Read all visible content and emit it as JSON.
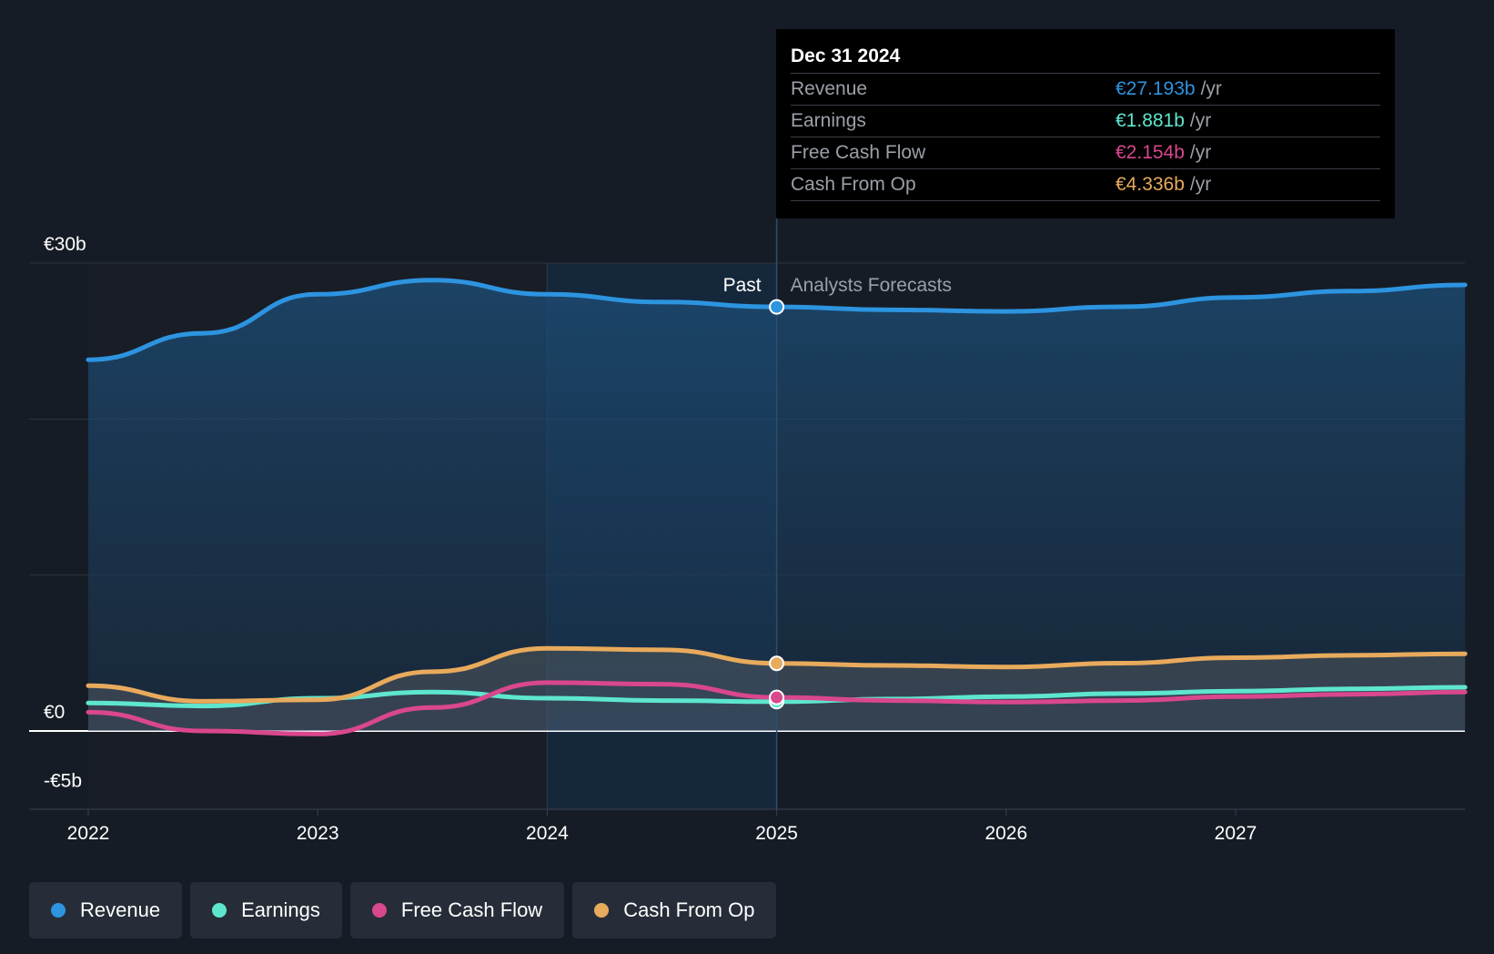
{
  "chart_data": {
    "type": "area",
    "y_labels": [
      "€30b",
      "€0",
      "-€5b"
    ],
    "ylim": [
      -5,
      30
    ],
    "x_ticks": [
      "2022",
      "2023",
      "2024",
      "2025",
      "2026",
      "2027"
    ],
    "past_label": "Past",
    "forecast_label": "Analysts Forecasts",
    "divider_x": 2025.0,
    "series": [
      {
        "name": "Revenue",
        "color": "#2d94e0",
        "points": [
          [
            2022.0,
            23.8
          ],
          [
            2022.5,
            25.5
          ],
          [
            2023.0,
            28.0
          ],
          [
            2023.5,
            28.9
          ],
          [
            2024.0,
            28.0
          ],
          [
            2024.5,
            27.5
          ],
          [
            2025.0,
            27.193
          ],
          [
            2025.5,
            27.0
          ],
          [
            2026.0,
            26.9
          ],
          [
            2026.5,
            27.2
          ],
          [
            2027.0,
            27.8
          ],
          [
            2027.5,
            28.2
          ],
          [
            2028.0,
            28.6
          ]
        ]
      },
      {
        "name": "Earnings",
        "color": "#5ee6cf",
        "points": [
          [
            2022.0,
            1.8
          ],
          [
            2022.5,
            1.6
          ],
          [
            2023.0,
            2.1
          ],
          [
            2023.5,
            2.5
          ],
          [
            2024.0,
            2.1
          ],
          [
            2024.5,
            1.95
          ],
          [
            2025.0,
            1.881
          ],
          [
            2025.5,
            2.05
          ],
          [
            2026.0,
            2.2
          ],
          [
            2026.5,
            2.4
          ],
          [
            2027.0,
            2.55
          ],
          [
            2027.5,
            2.7
          ],
          [
            2028.0,
            2.8
          ]
        ]
      },
      {
        "name": "Free Cash Flow",
        "color": "#d9478d",
        "points": [
          [
            2022.0,
            1.2
          ],
          [
            2022.5,
            0.0
          ],
          [
            2023.0,
            -0.2
          ],
          [
            2023.5,
            1.5
          ],
          [
            2024.0,
            3.1
          ],
          [
            2024.5,
            3.0
          ],
          [
            2025.0,
            2.154
          ],
          [
            2025.5,
            1.95
          ],
          [
            2026.0,
            1.85
          ],
          [
            2026.5,
            1.95
          ],
          [
            2027.0,
            2.2
          ],
          [
            2027.5,
            2.35
          ],
          [
            2028.0,
            2.5
          ]
        ]
      },
      {
        "name": "Cash From Op",
        "color": "#e8aa5c",
        "points": [
          [
            2022.0,
            2.9
          ],
          [
            2022.5,
            1.9
          ],
          [
            2023.0,
            2.0
          ],
          [
            2023.5,
            3.8
          ],
          [
            2024.0,
            5.3
          ],
          [
            2024.5,
            5.2
          ],
          [
            2025.0,
            4.336
          ],
          [
            2025.5,
            4.2
          ],
          [
            2026.0,
            4.1
          ],
          [
            2026.5,
            4.35
          ],
          [
            2027.0,
            4.7
          ],
          [
            2027.5,
            4.85
          ],
          [
            2028.0,
            4.95
          ]
        ]
      }
    ]
  },
  "tooltip": {
    "date": "Dec 31 2024",
    "unit": "/yr",
    "rows": [
      {
        "name": "Revenue",
        "value": "€27.193b",
        "color": "#2d94e0"
      },
      {
        "name": "Earnings",
        "value": "€1.881b",
        "color": "#5ee6cf"
      },
      {
        "name": "Free Cash Flow",
        "value": "€2.154b",
        "color": "#d9478d"
      },
      {
        "name": "Cash From Op",
        "value": "€4.336b",
        "color": "#e8aa5c"
      }
    ]
  },
  "legend": [
    {
      "label": "Revenue",
      "color": "#2d94e0"
    },
    {
      "label": "Earnings",
      "color": "#5ee6cf"
    },
    {
      "label": "Free Cash Flow",
      "color": "#d9478d"
    },
    {
      "label": "Cash From Op",
      "color": "#e8aa5c"
    }
  ]
}
